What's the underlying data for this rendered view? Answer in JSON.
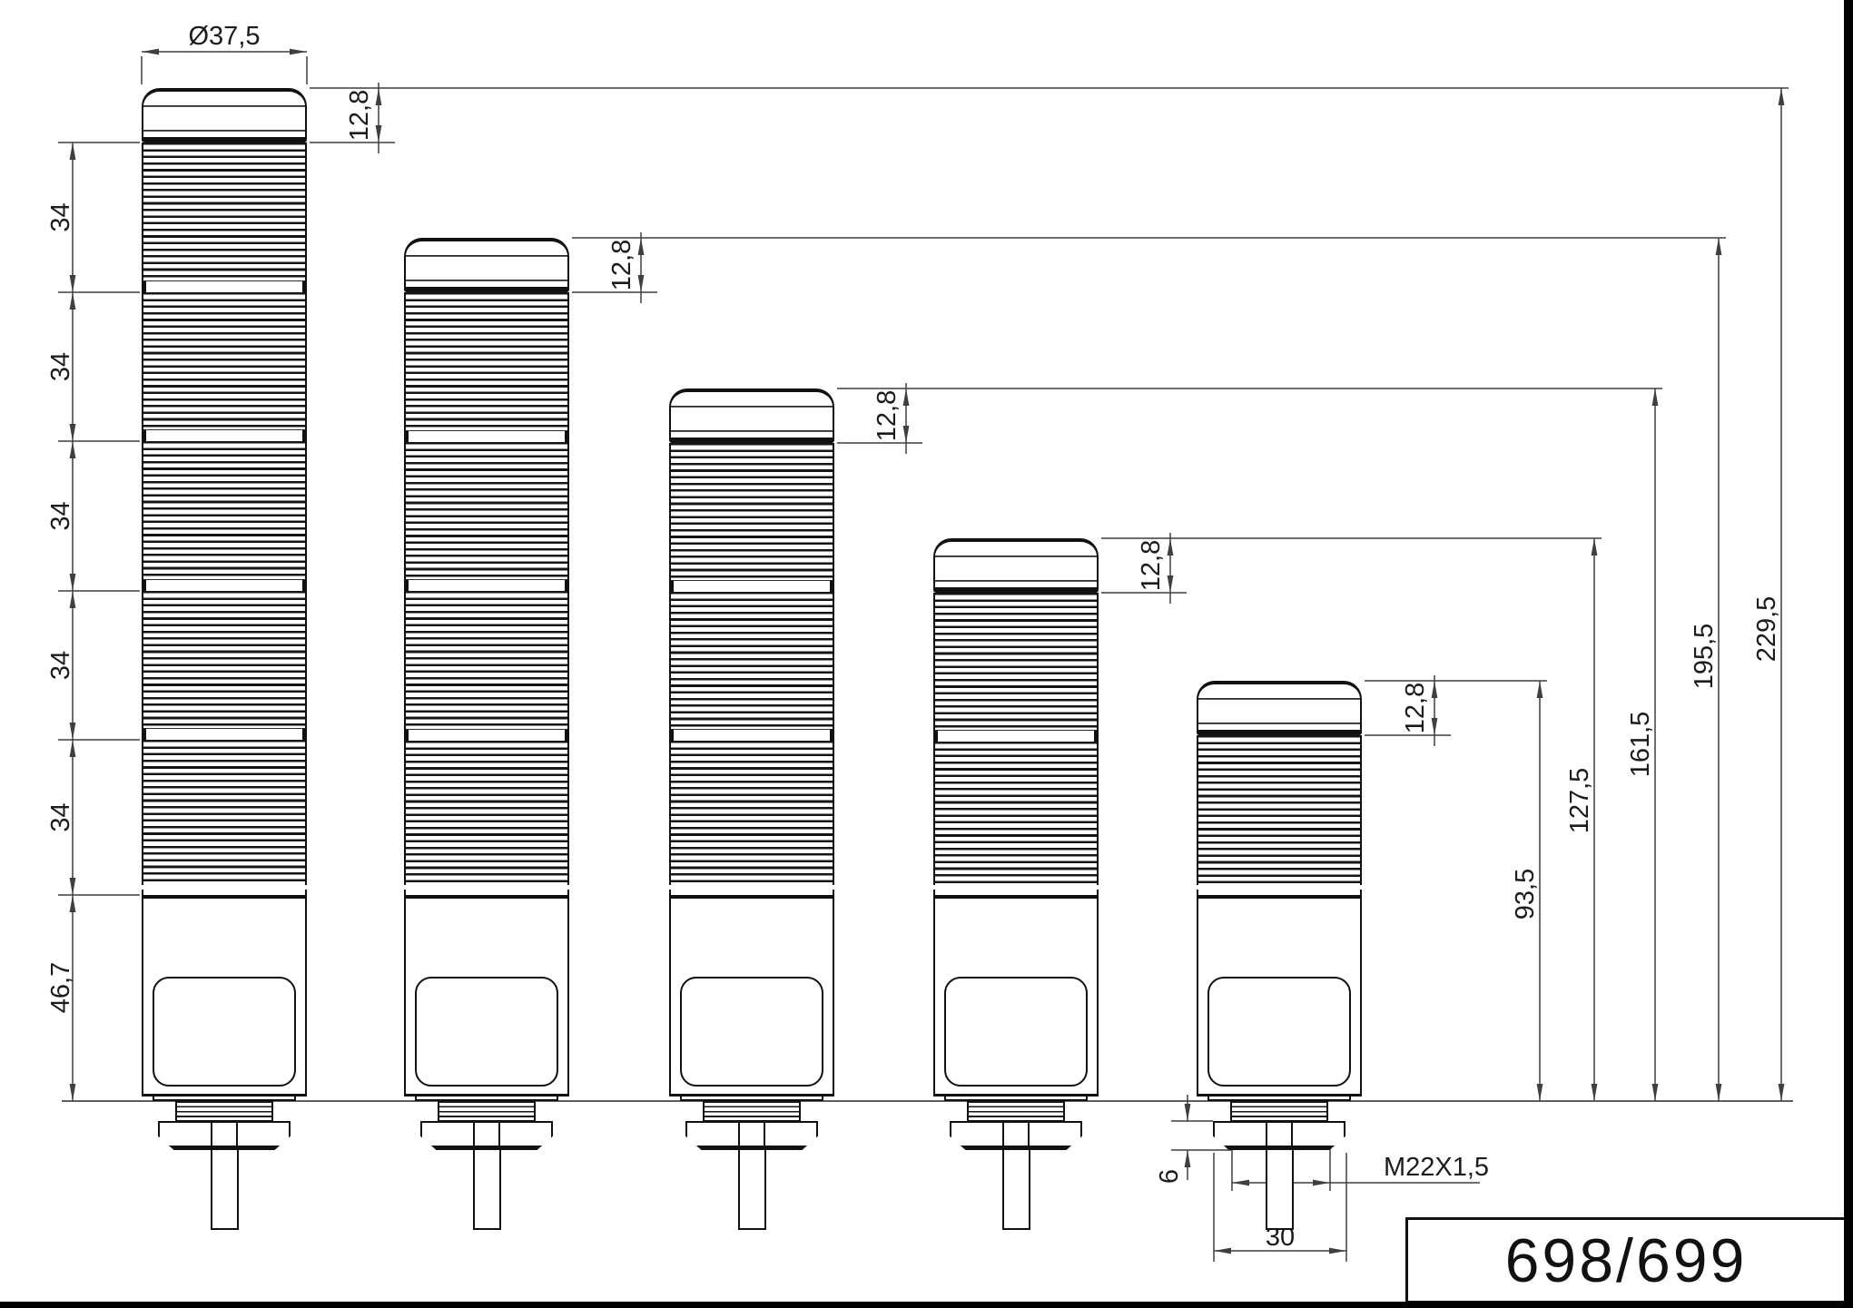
{
  "drawing": {
    "product_code": "698/699",
    "dimensions": {
      "diameter": "Ø37,5",
      "cap_height": "12,8",
      "module_height": "34",
      "base_height": "46,7",
      "nut_height": "6",
      "nut_width": "30",
      "thread": "M22X1,5"
    },
    "towers": [
      {
        "name": "5-module signal tower",
        "modules": 5,
        "total_height": "229,5"
      },
      {
        "name": "4-module signal tower",
        "modules": 4,
        "total_height": "195,5"
      },
      {
        "name": "3-module signal tower",
        "modules": 3,
        "total_height": "161,5"
      },
      {
        "name": "2-module signal tower",
        "modules": 2,
        "total_height": "127,5"
      },
      {
        "name": "1-module signal tower",
        "modules": 1,
        "total_height": "93,5"
      }
    ]
  }
}
